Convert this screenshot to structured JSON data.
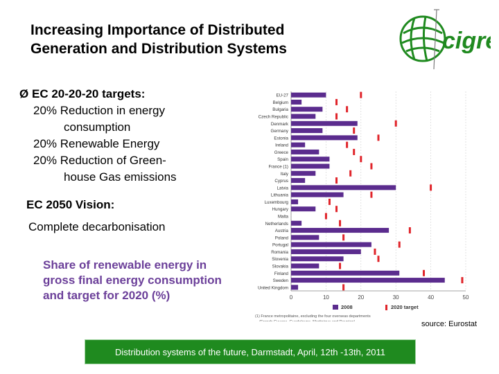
{
  "slide": {
    "title_line1": "Increasing Importance of Distributed",
    "title_line2": "Generation and Distribution Systems",
    "logo_text": "cigré"
  },
  "targets": {
    "arrow": "Ø",
    "heading": "EC 20-20-20 targets:",
    "line1": "20% Reduction in energy",
    "line1b": "consumption",
    "line2": "20% Renewable Energy",
    "line3": "20% Reduction of Green-",
    "line3b": "house Gas emissions"
  },
  "vision": {
    "heading": "EC 2050 Vision:",
    "text": "Complete decarbonisation"
  },
  "share": {
    "line1": "Share of renewable energy in",
    "line2": "gross final energy consumption",
    "line3": "and target for 2020 (%)"
  },
  "source": "source: Eurostat",
  "footer": "Distribution systems of the future, Darmstadt, April, 12th -13th, 2011",
  "chart_data": {
    "type": "bar",
    "orientation": "horizontal",
    "categories": [
      "EU-27",
      "Belgium",
      "Bulgaria",
      "Czech Republic",
      "Denmark",
      "Germany",
      "Estonia",
      "Ireland",
      "Greece",
      "Spain",
      "France (1)",
      "Italy",
      "Cyprus",
      "Latvia",
      "Lithuania",
      "Luxembourg",
      "Hungary",
      "Malta",
      "Netherlands",
      "Austria",
      "Poland",
      "Portugal",
      "Romania",
      "Slovenia",
      "Slovakia",
      "Finland",
      "Sweden",
      "United Kingdom"
    ],
    "series": [
      {
        "name": "2008",
        "values": [
          10,
          3,
          9,
          7,
          19,
          9,
          19,
          4,
          8,
          11,
          11,
          7,
          4,
          30,
          15,
          2,
          7,
          0,
          3,
          28,
          8,
          23,
          20,
          15,
          8,
          31,
          44,
          2
        ]
      },
      {
        "name": "2020 target",
        "values": [
          20,
          13,
          16,
          13,
          30,
          18,
          25,
          16,
          18,
          20,
          23,
          17,
          13,
          40,
          23,
          11,
          13,
          10,
          14,
          34,
          15,
          31,
          24,
          25,
          14,
          38,
          49,
          15
        ]
      }
    ],
    "x_ticks": [
      "0",
      "10",
      "20",
      "30",
      "40",
      "50"
    ],
    "xlim": [
      0,
      50
    ],
    "colors": {
      "2008": "#5b2c8e",
      "2020 target": "#e0242a"
    },
    "legend_position": "bottom",
    "footnote_line1": "(1) France metropolitaine, excluding the four overseas departments",
    "footnote_line2": "(French Guyana, Guadeloupe, Martinique and Reunion)."
  }
}
